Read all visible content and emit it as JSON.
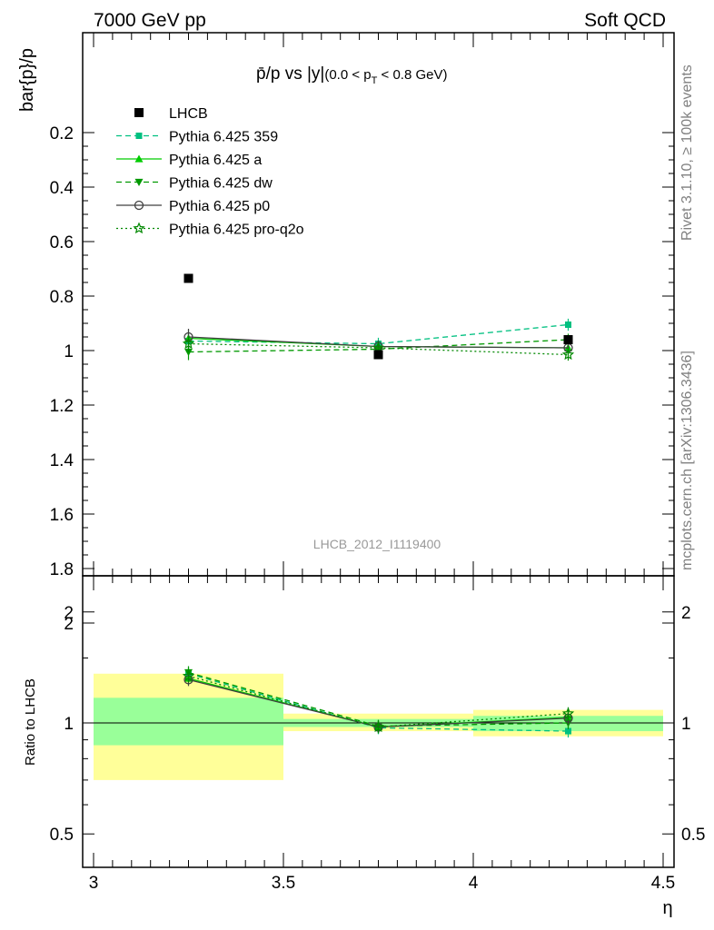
{
  "header": {
    "left": "7000 GeV pp",
    "right": "Soft QCD"
  },
  "side": {
    "rivet": "Rivet 3.1.10, ≥ 100k events",
    "mcplots": "mcplots.cern.ch [arXiv:1306.3436]"
  },
  "chart_data": {
    "type": "scatter",
    "title_main": "p̄/p vs |y|",
    "title_sub_pre": "(0.0 < p",
    "title_sub_idx": "T",
    "title_sub_post": " < 0.8 GeV)",
    "analysis_id": "LHCB_2012_I1119400",
    "ylabel": "bar{p}/p",
    "ratio_ylabel": "Ratio to LHCB",
    "xlabel": "η",
    "xlim": [
      3.0,
      4.5
    ],
    "ylim": [
      0.18,
      2.18
    ],
    "ratio_ylim": [
      0.4,
      2.4
    ],
    "ratio_log": true,
    "x_ticks": [
      "3",
      "3.5",
      "4",
      "4.5"
    ],
    "y_ticks": [
      "0.2",
      "0.4",
      "0.6",
      "0.8",
      "1",
      "1.2",
      "1.4",
      "1.6",
      "1.8",
      "2"
    ],
    "ratio_ticks": [
      "0.5",
      "1",
      "2"
    ],
    "reference": {
      "name": "LHCB",
      "color": "#000000",
      "x": [
        3.25,
        3.75,
        4.25
      ],
      "y": [
        0.735,
        1.015,
        0.96
      ],
      "bins": [
        [
          3.0,
          3.5
        ],
        [
          3.5,
          4.0
        ],
        [
          4.0,
          4.5
        ]
      ],
      "band_inner": [
        [
          0.87,
          1.17
        ],
        [
          0.975,
          1.025
        ],
        [
          0.95,
          1.045
        ]
      ],
      "band_outer": [
        [
          0.7,
          1.36
        ],
        [
          0.95,
          1.06
        ],
        [
          0.92,
          1.085
        ]
      ]
    },
    "series": [
      {
        "name": "Pythia 6.425 359",
        "color": "#00c080",
        "marker": "square",
        "dash": "dashed",
        "x": [
          3.25,
          3.75,
          4.25
        ],
        "y": [
          0.965,
          0.975,
          0.905
        ],
        "err": [
          0.03,
          0.022,
          0.022
        ],
        "ratio": [
          1.36,
          0.97,
          0.95
        ]
      },
      {
        "name": "Pythia 6.425 a",
        "color": "#00cc00",
        "marker": "triangle-up",
        "dash": "solid",
        "x": [
          3.25,
          3.75,
          4.25
        ],
        "y": [
          0.955,
          0.985,
          0.99
        ],
        "err": [
          0.03,
          0.022,
          0.022
        ],
        "ratio": [
          1.32,
          0.975,
          1.035
        ]
      },
      {
        "name": "Pythia 6.425 dw",
        "color": "#009900",
        "marker": "triangle-down",
        "dash": "dashed",
        "x": [
          3.25,
          3.75,
          4.25
        ],
        "y": [
          1.005,
          0.995,
          0.96
        ],
        "err": [
          0.03,
          0.022,
          0.022
        ],
        "ratio": [
          1.37,
          0.98,
          1.0
        ]
      },
      {
        "name": "Pythia 6.425 p0",
        "color": "#404040",
        "marker": "circle-open",
        "dash": "solid",
        "x": [
          3.25,
          3.75,
          4.25
        ],
        "y": [
          0.95,
          0.985,
          0.99
        ],
        "err": [
          0.03,
          0.022,
          0.022
        ],
        "ratio": [
          1.31,
          0.975,
          1.03
        ]
      },
      {
        "name": "Pythia 6.425 pro-q2o",
        "color": "#008800",
        "marker": "star",
        "dash": "dotted",
        "x": [
          3.25,
          3.75,
          4.25
        ],
        "y": [
          0.975,
          0.99,
          1.015
        ],
        "err": [
          0.03,
          0.022,
          0.022
        ],
        "ratio": [
          1.34,
          0.975,
          1.06
        ]
      }
    ],
    "colors": {
      "band_inner": "#99ff99",
      "band_outer": "#ffff99"
    }
  }
}
